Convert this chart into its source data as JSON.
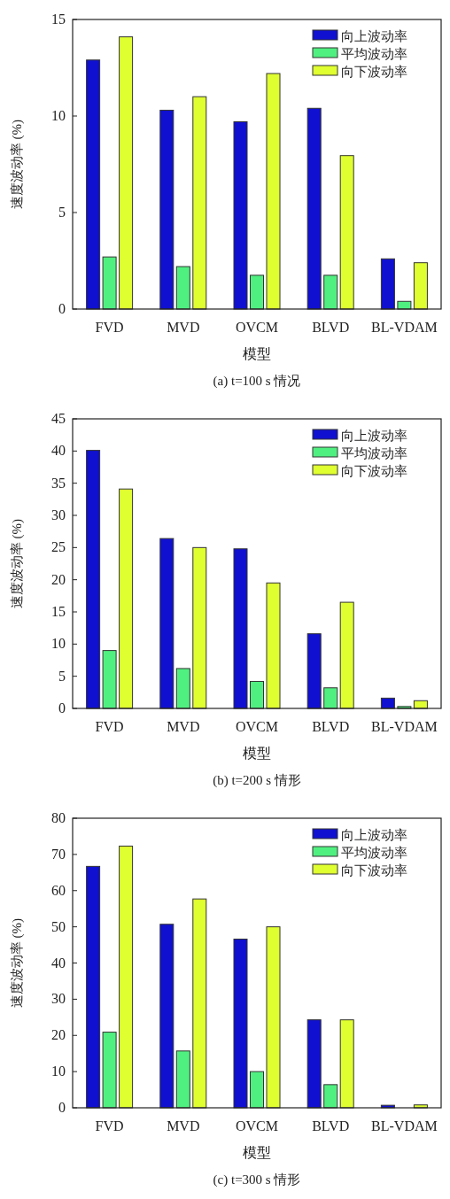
{
  "chart_data": [
    {
      "type": "bar",
      "title": "(a) t=100 s 情况",
      "xlabel": "模型",
      "ylabel": "速度波动率 (%)",
      "categories": [
        "FVD",
        "MVD",
        "OVCM",
        "BLVD",
        "BL-VDAM"
      ],
      "ylim": [
        0,
        15
      ],
      "yticks": [
        0,
        5,
        10,
        15
      ],
      "legend": "top right",
      "series": [
        {
          "name": "向上波动率",
          "color": "#1010d0",
          "values": [
            12.9,
            10.3,
            9.7,
            10.4,
            2.6
          ]
        },
        {
          "name": "平均波动率",
          "color": "#50f080",
          "values": [
            2.7,
            2.2,
            1.75,
            1.75,
            0.4
          ]
        },
        {
          "name": "向下波动率",
          "color": "#e0ff30",
          "values": [
            14.1,
            11.0,
            12.2,
            7.95,
            2.4
          ]
        }
      ]
    },
    {
      "type": "bar",
      "title": "(b) t=200 s 情形",
      "xlabel": "模型",
      "ylabel": "速度波动率 (%)",
      "categories": [
        "FVD",
        "MVD",
        "OVCM",
        "BLVD",
        "BL-VDAM"
      ],
      "ylim": [
        0,
        45
      ],
      "yticks": [
        0,
        5,
        10,
        15,
        20,
        25,
        30,
        35,
        40,
        45
      ],
      "legend": "top right",
      "series": [
        {
          "name": "向上波动率",
          "color": "#1010d0",
          "values": [
            40.1,
            26.4,
            24.8,
            11.6,
            1.6
          ]
        },
        {
          "name": "平均波动率",
          "color": "#50f080",
          "values": [
            9.0,
            6.2,
            4.2,
            3.2,
            0.3
          ]
        },
        {
          "name": "向下波动率",
          "color": "#e0ff30",
          "values": [
            34.1,
            25.0,
            19.5,
            16.5,
            1.2
          ]
        }
      ]
    },
    {
      "type": "bar",
      "title": "(c) t=300 s 情形",
      "xlabel": "模型",
      "ylabel": "速度波动率 (%)",
      "categories": [
        "FVD",
        "MVD",
        "OVCM",
        "BLVD",
        "BL-VDAM"
      ],
      "ylim": [
        0,
        80
      ],
      "yticks": [
        0,
        10,
        20,
        30,
        40,
        50,
        60,
        70,
        80
      ],
      "legend": "top right",
      "series": [
        {
          "name": "向上波动率",
          "color": "#1010d0",
          "values": [
            66.7,
            50.7,
            46.6,
            24.3,
            0.7
          ]
        },
        {
          "name": "平均波动率",
          "color": "#50f080",
          "values": [
            20.9,
            15.7,
            10.0,
            6.4,
            null
          ]
        },
        {
          "name": "向下波动率",
          "color": "#e0ff30",
          "values": [
            72.3,
            57.7,
            50.0,
            24.3,
            0.8
          ]
        }
      ]
    }
  ]
}
